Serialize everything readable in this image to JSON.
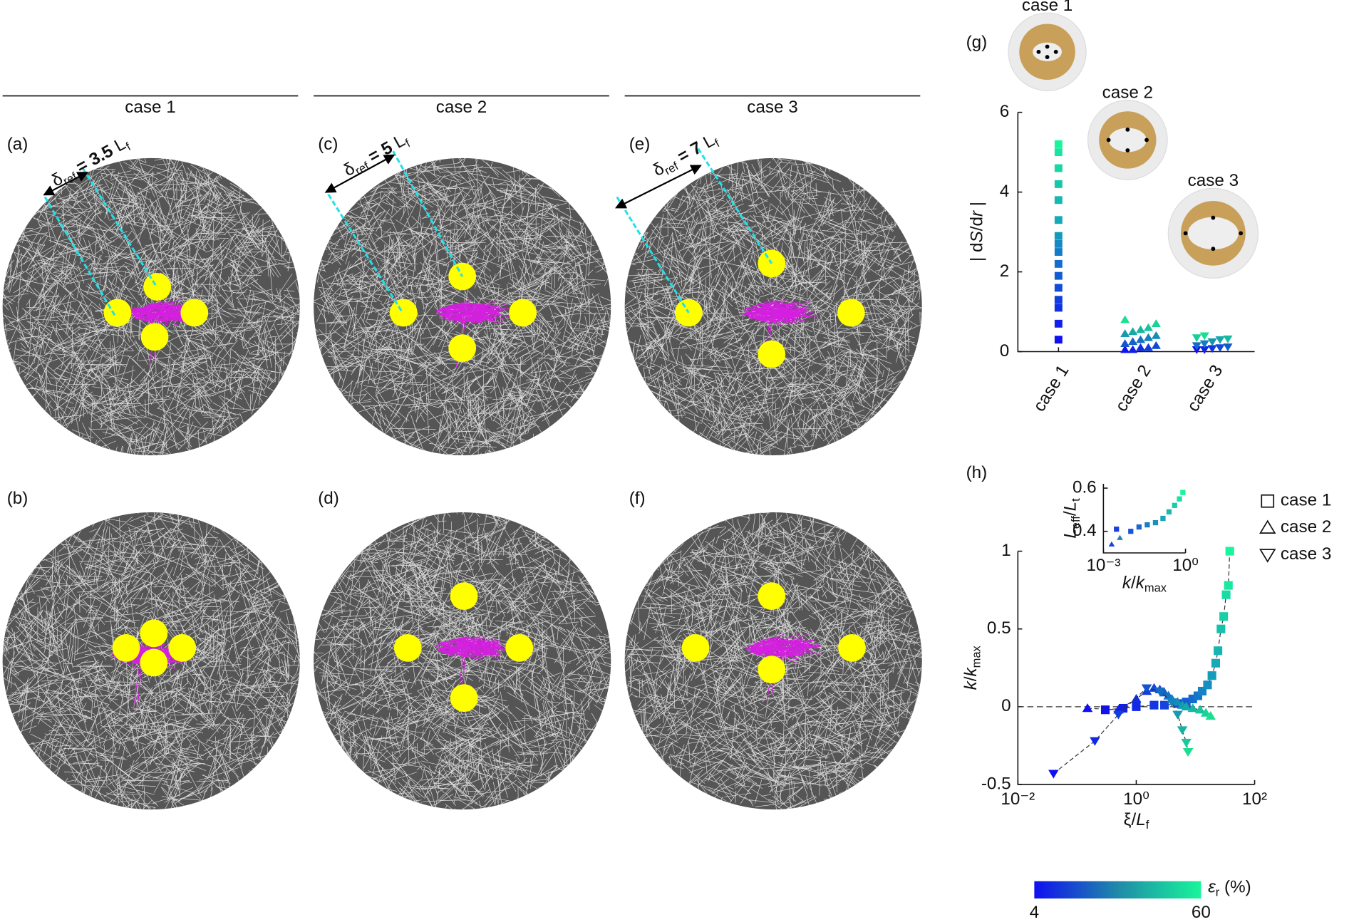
{
  "headers": [
    "case 1",
    "case 2",
    "case 3"
  ],
  "panels": [
    {
      "label": "(a)",
      "delta_label": [
        {
          "t": "δ"
        },
        {
          "t": "ref",
          "sub": true
        },
        {
          "t": " = 3.5 ",
          "bold": true
        },
        {
          "t": "L"
        },
        {
          "t": "f",
          "sub": true
        }
      ]
    },
    {
      "label": "(b)"
    },
    {
      "label": "(c)",
      "delta_label": [
        {
          "t": "δ"
        },
        {
          "t": "ref",
          "sub": true
        },
        {
          "t": " = 5 ",
          "bold": true
        },
        {
          "t": "L"
        },
        {
          "t": "f",
          "sub": true
        }
      ]
    },
    {
      "label": "(d)"
    },
    {
      "label": "(e)",
      "delta_label": [
        {
          "t": "δ"
        },
        {
          "t": "ref",
          "sub": true
        },
        {
          "t": " = 7 ",
          "bold": true
        },
        {
          "t": "L"
        },
        {
          "t": "f",
          "sub": true
        }
      ]
    },
    {
      "label": "(f)"
    }
  ],
  "chart_data": [
    {
      "type": "strip",
      "label": "(g)",
      "ylabel": [
        {
          "t": "| d"
        },
        {
          "t": "S",
          "italic": true
        },
        {
          "t": "/d"
        },
        {
          "t": "r",
          "italic": true
        },
        {
          "t": " |"
        }
      ],
      "categories": [
        "case 1",
        "case 2",
        "case 3"
      ],
      "thumbnails": [
        {
          "label": "case 1"
        },
        {
          "label": "case 2"
        },
        {
          "label": "case 3"
        }
      ],
      "ylim": [
        0,
        6
      ],
      "yticks": [
        0,
        2,
        4,
        6
      ],
      "series": [
        {
          "marker": "square",
          "colors": [
            "#1010f0",
            "#19f59a"
          ],
          "values": [
            0.3,
            0.7,
            1.1,
            1.3,
            1.6,
            1.9,
            2.2,
            2.5,
            2.7,
            2.9,
            3.3,
            3.8,
            4.2,
            4.6,
            5.0,
            5.2
          ]
        },
        {
          "marker": "triangle",
          "colors": [
            "#1010f0",
            "#19e090"
          ],
          "values": [
            0.05,
            0.05,
            0.1,
            0.1,
            0.15,
            0.2,
            0.25,
            0.3,
            0.35,
            0.4,
            0.45,
            0.5,
            0.55,
            0.6,
            0.7,
            0.8
          ]
        },
        {
          "marker": "triangle-down",
          "colors": [
            "#1010f0",
            "#19e090"
          ],
          "values": [
            0.05,
            0.05,
            0.08,
            0.1,
            0.12,
            0.15,
            0.2,
            0.25,
            0.3,
            0.32,
            0.35,
            0.4
          ]
        }
      ]
    },
    {
      "type": "scatter",
      "label": "(h)",
      "xscale": "log",
      "xlim": [
        0.01,
        100
      ],
      "xticks": [
        {
          "value": 0.01,
          "label": "10⁻²"
        },
        {
          "value": 1,
          "label": "10⁰"
        },
        {
          "value": 100,
          "label": "10²"
        }
      ],
      "ylim": [
        -0.5,
        1
      ],
      "yticks": [
        -0.5,
        0,
        0.5,
        1
      ],
      "xlabel": [
        {
          "t": "ξ/"
        },
        {
          "t": "L",
          "italic": true
        },
        {
          "t": "f",
          "sub": true
        }
      ],
      "ylabel": [
        {
          "t": "k",
          "italic": true
        },
        {
          "t": "/"
        },
        {
          "t": "k",
          "italic": true
        },
        {
          "t": "max",
          "sub": true
        }
      ],
      "reference_line": 0,
      "legend": "right",
      "series": [
        {
          "name": "case 1",
          "marker": "square",
          "colors": [
            "#1010f0",
            "#19f59a"
          ],
          "x": [
            0.3,
            0.6,
            1.0,
            2,
            3,
            5,
            7,
            9,
            11,
            13,
            16,
            19,
            22,
            24,
            27,
            30,
            33,
            36,
            38
          ],
          "values": [
            -0.02,
            -0.01,
            0.0,
            0.01,
            0.01,
            0.02,
            0.03,
            0.05,
            0.07,
            0.1,
            0.14,
            0.2,
            0.28,
            0.36,
            0.5,
            0.58,
            0.72,
            0.78,
            1.0
          ]
        },
        {
          "name": "case 2",
          "marker": "triangle",
          "colors": [
            "#1010f0",
            "#19e090"
          ],
          "x": [
            0.15,
            0.5,
            1.0,
            1.5,
            2,
            2.5,
            3,
            3.5,
            4,
            5,
            6,
            7,
            9,
            12,
            15,
            18
          ],
          "values": [
            -0.01,
            -0.02,
            0.05,
            0.1,
            0.12,
            0.11,
            0.09,
            0.07,
            0.05,
            0.03,
            0.01,
            0.0,
            -0.01,
            -0.02,
            -0.04,
            -0.06
          ]
        },
        {
          "name": "case 3",
          "marker": "triangle-down",
          "colors": [
            "#1010f0",
            "#19e090"
          ],
          "x": [
            0.04,
            0.2,
            0.5,
            1.5,
            2.5,
            4,
            5,
            6,
            7,
            7.5
          ],
          "values": [
            -0.43,
            -0.22,
            -0.05,
            0.12,
            0.1,
            0.03,
            -0.05,
            -0.15,
            -0.23,
            -0.29
          ]
        }
      ]
    },
    {
      "type": "scatter",
      "xscale": "log",
      "xlim": [
        0.001,
        1
      ],
      "xticks": [
        {
          "value": 0.001,
          "label": "10⁻³"
        },
        {
          "value": 1,
          "label": "10⁰"
        }
      ],
      "ylim": [
        0.3,
        0.62
      ],
      "yticks": [
        0.4,
        0.6
      ],
      "xlabel": [
        {
          "t": "k",
          "italic": true
        },
        {
          "t": "/"
        },
        {
          "t": "k",
          "italic": true
        },
        {
          "t": "max",
          "sub": true
        }
      ],
      "ylabel": [
        {
          "t": "L",
          "italic": true
        },
        {
          "t": "eff",
          "sub": true
        },
        {
          "t": "/"
        },
        {
          "t": "L",
          "italic": true
        },
        {
          "t": "t",
          "sub": true
        }
      ],
      "series": [
        {
          "marker": "triangle",
          "colors": [
            "#1a40e0",
            "#2a7fb0"
          ],
          "x": [
            0.002,
            0.004
          ],
          "values": [
            0.34,
            0.37
          ]
        },
        {
          "marker": "square",
          "colors": [
            "#1a40e0",
            "#19f59a"
          ],
          "x": [
            0.003,
            0.01,
            0.02,
            0.04,
            0.08,
            0.15,
            0.25,
            0.4,
            0.6,
            0.8
          ],
          "values": [
            0.41,
            0.4,
            0.42,
            0.43,
            0.44,
            0.46,
            0.49,
            0.52,
            0.55,
            0.58
          ]
        }
      ]
    }
  ],
  "colorbar": {
    "ticks": [
      4,
      60
    ],
    "colors": [
      "#1010f0",
      "#1f8aa8",
      "#19f59a"
    ],
    "label": [
      {
        "t": "ε",
        "italic": true
      },
      {
        "t": "r",
        "sub": true
      },
      {
        "t": " (%)"
      }
    ]
  }
}
